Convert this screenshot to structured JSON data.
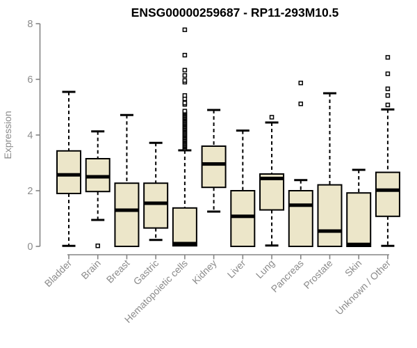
{
  "chart_data": {
    "type": "boxplot",
    "title": "ENSG00000259687 - RP11-293M10.5",
    "ylabel": "Expression",
    "xlabel": "",
    "y_range": [
      0,
      8
    ],
    "y_ticks": [
      0,
      2,
      4,
      6,
      8
    ],
    "grid": false,
    "legend": "none",
    "categories": [
      "Bladder",
      "Brain",
      "Breast",
      "Gastric",
      "Hematopoietic cells",
      "Kidney",
      "Liver",
      "Lung",
      "Pancreas",
      "Prostate",
      "Skin",
      "Unknown / Other"
    ],
    "series": [
      {
        "label": "Bladder",
        "whisker_low": 0.02,
        "q1": 1.9,
        "median": 2.57,
        "q3": 3.43,
        "whisker_high": 5.55,
        "outliers": []
      },
      {
        "label": "Brain",
        "whisker_low": 0.95,
        "q1": 1.97,
        "median": 2.5,
        "q3": 3.15,
        "whisker_high": 4.13,
        "outliers": [
          0.02
        ]
      },
      {
        "label": "Breast",
        "whisker_low": 0.0,
        "q1": 0.0,
        "median": 1.3,
        "q3": 2.27,
        "whisker_high": 4.72,
        "outliers": []
      },
      {
        "label": "Gastric",
        "whisker_low": 0.23,
        "q1": 0.66,
        "median": 1.55,
        "q3": 2.27,
        "whisker_high": 3.72,
        "outliers": []
      },
      {
        "label": "Hematopoietic cells",
        "whisker_low": 0.02,
        "q1": 0.02,
        "median": 0.1,
        "q3": 1.38,
        "whisker_high": 3.45,
        "outliers": [
          3.5,
          3.54,
          3.58,
          3.62,
          3.66,
          3.7,
          3.74,
          3.78,
          3.82,
          3.86,
          3.9,
          3.94,
          3.98,
          4.02,
          4.06,
          4.1,
          4.14,
          4.18,
          4.22,
          4.26,
          4.3,
          4.34,
          4.38,
          4.42,
          4.46,
          4.5,
          4.54,
          4.58,
          4.62,
          4.66,
          4.7,
          4.74,
          4.78,
          4.82,
          4.86,
          5.1,
          5.15,
          5.3,
          5.42,
          5.9,
          5.96,
          6.14,
          6.33,
          6.87,
          7.78
        ]
      },
      {
        "label": "Kidney",
        "whisker_low": 1.25,
        "q1": 2.12,
        "median": 2.96,
        "q3": 3.6,
        "whisker_high": 4.9,
        "outliers": []
      },
      {
        "label": "Liver",
        "whisker_low": 0.0,
        "q1": 0.0,
        "median": 1.08,
        "q3": 2.0,
        "whisker_high": 4.16,
        "outliers": []
      },
      {
        "label": "Lung",
        "whisker_low": 0.03,
        "q1": 1.31,
        "median": 2.44,
        "q3": 2.6,
        "whisker_high": 4.45,
        "outliers": [
          4.64
        ]
      },
      {
        "label": "Pancreas",
        "whisker_low": 0.0,
        "q1": 0.0,
        "median": 1.48,
        "q3": 2.0,
        "whisker_high": 2.38,
        "outliers": [
          5.12,
          5.87
        ]
      },
      {
        "label": "Prostate",
        "whisker_low": 0.0,
        "q1": 0.0,
        "median": 0.55,
        "q3": 2.21,
        "whisker_high": 5.5,
        "outliers": []
      },
      {
        "label": "Skin",
        "whisker_low": 0.0,
        "q1": 0.0,
        "median": 0.07,
        "q3": 1.92,
        "whisker_high": 2.75,
        "outliers": []
      },
      {
        "label": "Unknown / Other",
        "whisker_low": 0.02,
        "q1": 1.08,
        "median": 2.02,
        "q3": 2.66,
        "whisker_high": 4.92,
        "outliers": [
          5.08,
          5.42,
          5.66,
          6.2,
          6.79
        ]
      }
    ],
    "colors": {
      "box_fill": "#ECE6C9",
      "box_stroke": "#000000",
      "median": "#000000",
      "whisker": "#000000",
      "outlier_fill": "#FFFFFF",
      "outlier_stroke": "#000000",
      "axis": "#848484",
      "tick_text": "#8B8B8B",
      "title_text": "#000000",
      "background": "#FFFFFF"
    }
  }
}
